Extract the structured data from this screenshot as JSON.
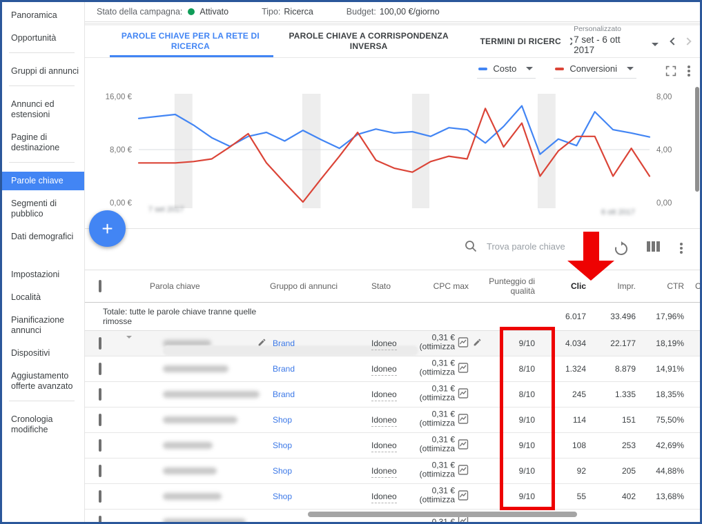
{
  "topbar": {
    "status_label": "Stato della campagna:",
    "status_value": "Attivato",
    "type_label": "Tipo:",
    "type_value": "Ricerca",
    "budget_label": "Budget:",
    "budget_value": "100,00 €/giorno"
  },
  "sidebar": {
    "items": [
      {
        "label": "Panoramica"
      },
      {
        "label": "Opportunità",
        "divider_after": true
      },
      {
        "label": "Gruppi di annunci",
        "divider_after": true
      },
      {
        "label": "Annunci ed estensioni"
      },
      {
        "label": "Pagine di destinazione",
        "divider_after": true
      },
      {
        "label": "Parole chiave",
        "selected": true
      },
      {
        "label": "Segmenti di pubblico"
      },
      {
        "label": "Dati demografici",
        "gap_after": true
      },
      {
        "label": "Impostazioni"
      },
      {
        "label": "Località"
      },
      {
        "label": "Pianificazione annunci"
      },
      {
        "label": "Dispositivi"
      },
      {
        "label": "Aggiustamento offerte avanzato",
        "divider_after": true
      },
      {
        "label": "Cronologia modifiche"
      }
    ]
  },
  "tabs": {
    "tab1": "PAROLE CHIAVE PER LA RETE DI RICERCA",
    "tab2": "PAROLE CHIAVE A CORRISPONDENZA INVERSA",
    "tab3": "TERMINI DI RICERC",
    "date_preset": "Personalizzato",
    "date_value": "7 set - 6 ott 2017"
  },
  "chart_data": {
    "type": "line",
    "legend_position": "top-right",
    "grid": "middle-line-only",
    "left_axis": {
      "ticks": [
        "16,00 €",
        "8,00 €",
        "0,00 €"
      ],
      "min": 0,
      "max": 16
    },
    "right_axis": {
      "ticks": [
        "8,00",
        "4,00",
        "0,00"
      ],
      "min": 0,
      "max": 8
    },
    "x_start_label": "7 set 2017",
    "x_end_label": "6 ott 2017",
    "weekend_bands": [
      [
        0.07,
        0.105
      ],
      [
        0.32,
        0.356
      ],
      [
        0.535,
        0.569
      ],
      [
        0.781,
        0.816
      ]
    ],
    "series": [
      {
        "name": "Costo",
        "color": "#4285f4",
        "axis": "left",
        "values": [
          12.7,
          13.0,
          13.3,
          11.7,
          9.8,
          8.5,
          10.0,
          10.6,
          9.3,
          10.9,
          9.5,
          8.2,
          10.3,
          11.1,
          10.5,
          10.7,
          10.0,
          11.3,
          11.0,
          9.0,
          11.5,
          14.6,
          7.3,
          9.6,
          8.6,
          13.7,
          11.0,
          10.5,
          9.9
        ]
      },
      {
        "name": "Conversioni",
        "color": "#db4437",
        "axis": "right",
        "values": [
          3.0,
          3.0,
          3.0,
          3.1,
          3.3,
          4.2,
          5.2,
          3.0,
          1.5,
          0.05,
          1.8,
          3.5,
          5.3,
          3.2,
          2.6,
          2.3,
          3.1,
          3.5,
          3.3,
          7.1,
          4.2,
          6.0,
          2.0,
          3.9,
          5.0,
          5.0,
          2.0,
          4.1,
          2.0
        ]
      }
    ]
  },
  "fab_label": "+",
  "toolbar": {
    "search_placeholder": "Trova parole chiave"
  },
  "table": {
    "headers": {
      "keyword": "Parola chiave",
      "group": "Gruppo di annunci",
      "status": "Stato",
      "cpc": "CPC max",
      "quality": "Punteggio di qualità",
      "clicks": "Clic",
      "impressions": "Impr.",
      "ctr": "CTR",
      "next_partial": "C"
    },
    "total": {
      "label": "Totale: tutte le parole chiave tranne quelle rimosse",
      "clicks": "6.017",
      "impressions": "33.496",
      "ctr": "17,96%"
    },
    "rows": [
      {
        "keyword_redacted": true,
        "kw_width": 70,
        "group": "Brand",
        "status": "Idoneo",
        "cpc_amount": "0,31 €",
        "cpc_note": "(ottimizza",
        "quality": "9/10",
        "clicks": "4.034",
        "impressions": "22.177",
        "ctr": "18,19%",
        "highlighted": true
      },
      {
        "keyword_redacted": true,
        "kw_width": 95,
        "group": "Brand",
        "status": "Idoneo",
        "cpc_amount": "0,31 €",
        "cpc_note": "(ottimizza",
        "quality": "8/10",
        "clicks": "1.324",
        "impressions": "8.879",
        "ctr": "14,91%"
      },
      {
        "keyword_redacted": true,
        "kw_width": 140,
        "group": "Brand",
        "status": "Idoneo",
        "cpc_amount": "0,31 €",
        "cpc_note": "(ottimizza",
        "quality": "8/10",
        "clicks": "245",
        "impressions": "1.335",
        "ctr": "18,35%"
      },
      {
        "keyword_redacted": true,
        "kw_width": 108,
        "group": "Shop",
        "status": "Idoneo",
        "cpc_amount": "0,31 €",
        "cpc_note": "(ottimizza",
        "quality": "9/10",
        "clicks": "114",
        "impressions": "151",
        "ctr": "75,50%"
      },
      {
        "keyword_redacted": true,
        "kw_width": 72,
        "group": "Shop",
        "status": "Idoneo",
        "cpc_amount": "0,31 €",
        "cpc_note": "(ottimizza",
        "quality": "9/10",
        "clicks": "108",
        "impressions": "253",
        "ctr": "42,69%"
      },
      {
        "keyword_redacted": true,
        "kw_width": 78,
        "group": "Shop",
        "status": "Idoneo",
        "cpc_amount": "0,31 €",
        "cpc_note": "(ottimizza",
        "quality": "9/10",
        "clicks": "92",
        "impressions": "205",
        "ctr": "44,88%"
      },
      {
        "keyword_redacted": true,
        "kw_width": 85,
        "group": "Shop",
        "status": "Idoneo",
        "cpc_amount": "0,31 €",
        "cpc_note": "(ottimizza",
        "quality": "9/10",
        "clicks": "55",
        "impressions": "402",
        "ctr": "13,68%"
      }
    ],
    "partial_row": {
      "keyword_redacted": true,
      "kw_width": 120,
      "cpc_amount": "0,31 €"
    }
  },
  "colors": {
    "frame_blue": "#2b579a",
    "accent_blue": "#4285f4",
    "line_red": "#db4437",
    "status_green": "#0f9d58",
    "annotation_red": "#ee0202"
  }
}
